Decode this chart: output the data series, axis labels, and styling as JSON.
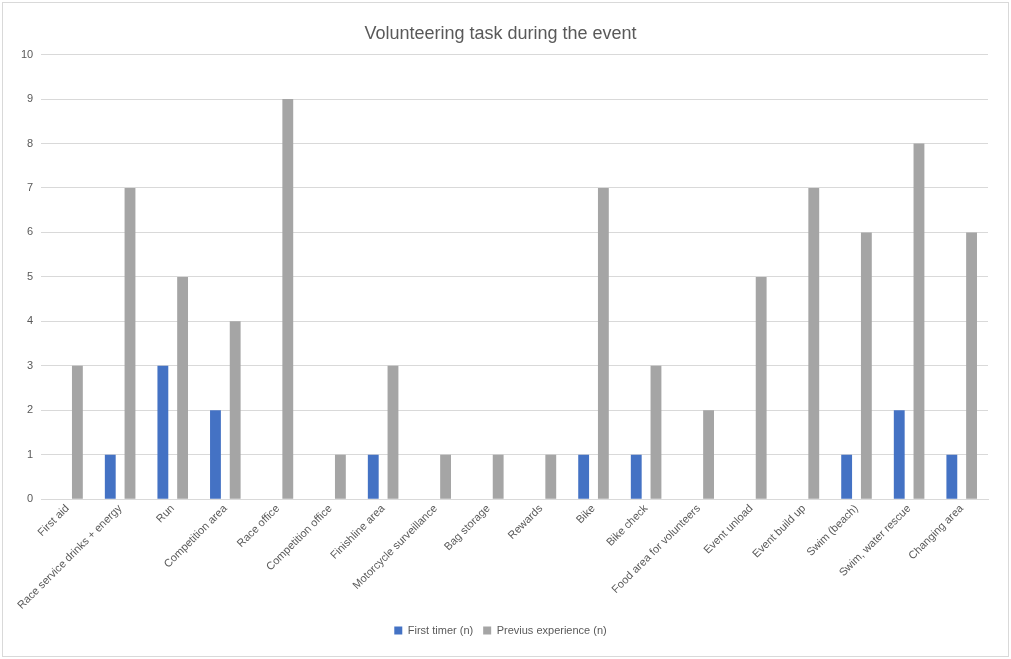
{
  "chart_data": {
    "type": "bar",
    "title": "Volunteering task during the event",
    "categories": [
      "First aid",
      "Race service drinks + energy",
      "Run",
      "Competition area",
      "Race office",
      "Competition office",
      "Finishline area",
      "Motorcycle surveillance",
      "Bag storage",
      "Rewards",
      "Bike",
      "Bike check",
      "Food area for volunteers",
      "Event unload",
      "Event build up",
      "Swim (beach)",
      "Swim, water rescue",
      "Changing area"
    ],
    "series": [
      {
        "name": "First timer (n)",
        "color": "#4472c4",
        "values": [
          0,
          1,
          3,
          2,
          0,
          0,
          1,
          0,
          0,
          0,
          1,
          1,
          0,
          0,
          0,
          1,
          2,
          1
        ]
      },
      {
        "name": "Previus experience (n)",
        "color": "#a5a5a5",
        "values": [
          3,
          7,
          5,
          4,
          9,
          1,
          3,
          1,
          1,
          1,
          7,
          3,
          2,
          5,
          7,
          6,
          8,
          6
        ]
      }
    ],
    "ylim": [
      0,
      10
    ],
    "yticks": [
      0,
      1,
      2,
      3,
      4,
      5,
      6,
      7,
      8,
      9,
      10
    ],
    "grid": "y",
    "legend": "bottom"
  }
}
